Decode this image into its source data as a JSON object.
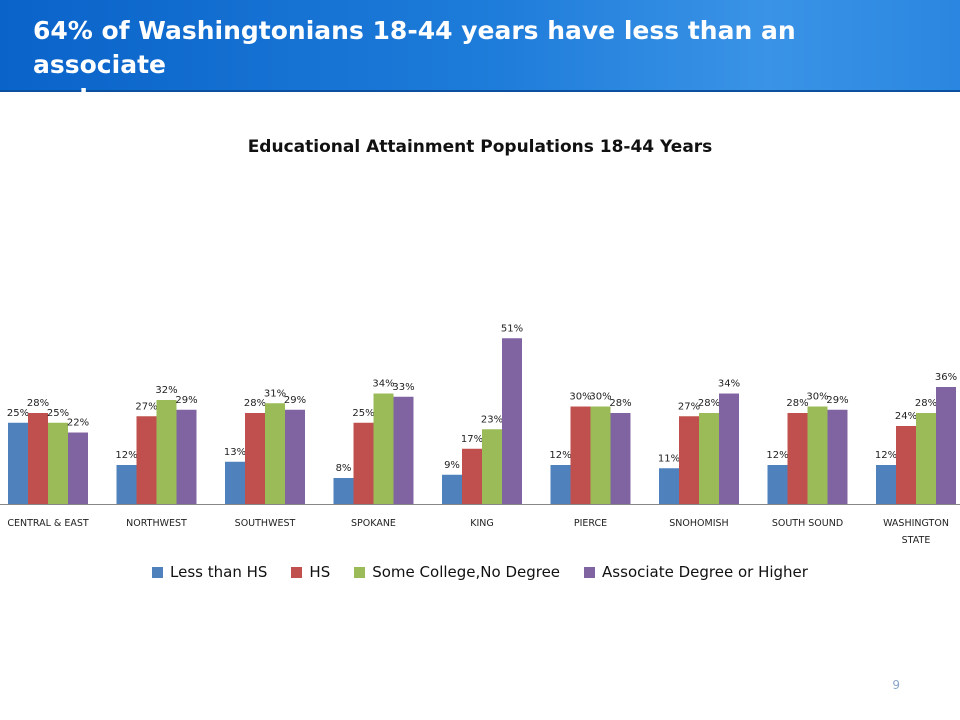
{
  "slide": {
    "title_line1": "64% of Washingtonians 18-44 years have less than an associate",
    "title_line2": "degree",
    "page_number": "9"
  },
  "chart_data": {
    "type": "bar",
    "title": "Educational Attainment Populations 18-44 Years",
    "categories": [
      "CENTRAL & EAST",
      "NORTHWEST",
      "SOUTHWEST",
      "SPOKANE",
      "KING",
      "PIERCE",
      "SNOHOMISH",
      "SOUTH SOUND",
      "WASHINGTON STATE"
    ],
    "category_lines": [
      [
        "CENTRAL & EAST"
      ],
      [
        "NORTHWEST"
      ],
      [
        "SOUTHWEST"
      ],
      [
        "SPOKANE"
      ],
      [
        "KING"
      ],
      [
        "PIERCE"
      ],
      [
        "SNOHOMISH"
      ],
      [
        "SOUTH SOUND"
      ],
      [
        "WASHINGTON",
        "STATE"
      ]
    ],
    "series": [
      {
        "name": "Less than HS",
        "color": "#4f81bd",
        "values": [
          25,
          12,
          13,
          8,
          9,
          12,
          11,
          12,
          12
        ],
        "labels": [
          "25%",
          "12%",
          "13%",
          "8%",
          "9%",
          "12%",
          "11%",
          "12%",
          "12%"
        ]
      },
      {
        "name": "HS",
        "color": "#c0504d",
        "values": [
          28,
          27,
          28,
          25,
          17,
          30,
          27,
          28,
          24
        ],
        "labels": [
          "28%",
          "27%",
          "28%",
          "25%",
          "17%",
          "30%",
          "27%",
          "28%",
          "24%"
        ]
      },
      {
        "name": "Some College,No Degree",
        "color": "#9bbb59",
        "values": [
          25,
          32,
          31,
          34,
          23,
          30,
          28,
          30,
          28
        ],
        "labels": [
          "25%",
          "32%",
          "31%",
          "34%",
          "23%",
          "30%",
          "28%",
          "30%",
          "28%"
        ]
      },
      {
        "name": "Associate Degree or Higher",
        "color": "#8064a2",
        "values": [
          22,
          29,
          29,
          33,
          51,
          28,
          34,
          29,
          36
        ],
        "labels": [
          "22%",
          "29%",
          "29%",
          "33%",
          "51%",
          "28%",
          "34%",
          "29%",
          "36%"
        ]
      }
    ],
    "ylim": [
      0,
      60
    ],
    "grid": false,
    "legend_position": "bottom"
  }
}
